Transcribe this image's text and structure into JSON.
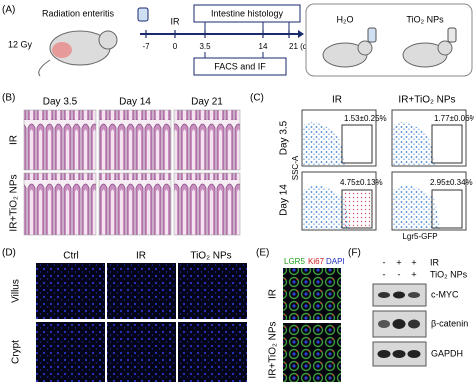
{
  "panel_a": {
    "label": "(A)",
    "model": "Radiation enteritis",
    "dose": "12 Gy",
    "timeline_ticks": [
      "-7",
      "0",
      "3.5",
      "14",
      "21 (d)"
    ],
    "treatment": "IR",
    "upper_box": "Intestine histology",
    "lower_box": "FACS and IF",
    "groups": [
      "H₂O",
      "TiO₂ NPs"
    ]
  },
  "panel_b": {
    "label": "(B)",
    "columns": [
      "Day 3.5",
      "Day 14",
      "Day 21"
    ],
    "rows": [
      "IR",
      "IR+TiO₂ NPs"
    ]
  },
  "panel_c": {
    "label": "(C)",
    "columns": [
      "IR",
      "IR+TiO₂ NPs"
    ],
    "rows": [
      "Day 3.5",
      "Day 14"
    ],
    "gates": [
      [
        "1.53±0.25%",
        "1.77±0.06%"
      ],
      [
        "4.75±0.13%",
        "2.95±0.34%"
      ]
    ],
    "y_axis": "SSC-A",
    "x_axis": "Lgr5-GFP"
  },
  "panel_d": {
    "label": "(D)",
    "columns": [
      "Ctrl",
      "IR",
      "TiO₂ NPs"
    ],
    "rows": [
      "Villus",
      "Crypt"
    ]
  },
  "panel_e": {
    "label": "(E)",
    "stains": [
      "LGR5",
      "Ki67",
      "DAPI"
    ],
    "rows": [
      "IR",
      "IR+TiO₂ NPs"
    ]
  },
  "panel_f": {
    "label": "(F)",
    "conditions": [
      {
        "name": "IR",
        "signs": [
          "-",
          "+",
          "+"
        ]
      },
      {
        "name": "TiO₂ NPs",
        "signs": [
          "-",
          "-",
          "+"
        ]
      }
    ],
    "proteins": [
      "c-MYC",
      "β-catenin",
      "GAPDH"
    ]
  }
}
